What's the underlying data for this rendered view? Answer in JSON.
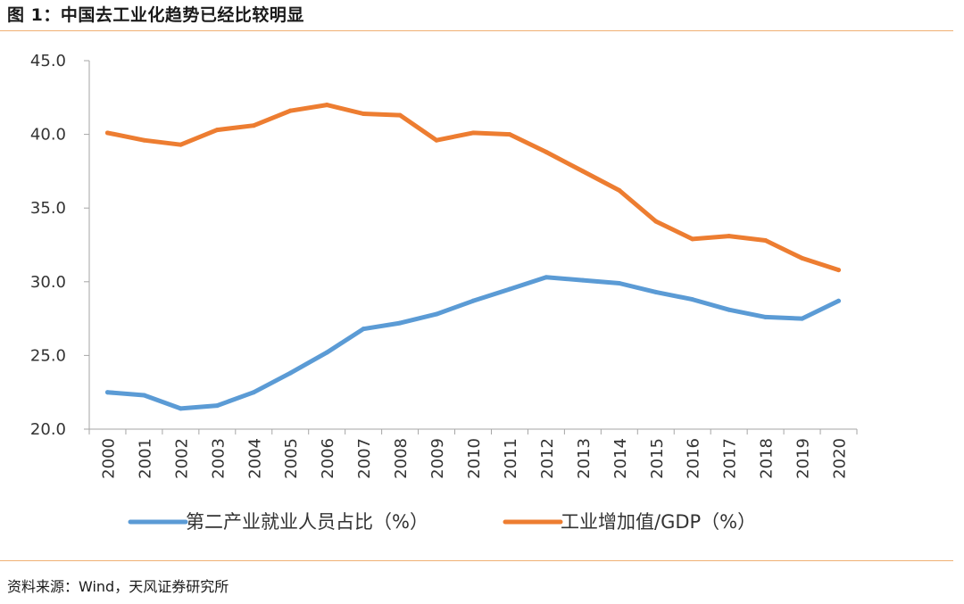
{
  "figure": {
    "title": "图 1：中国去工业化趋势已经比较明显",
    "source": "资料来源：Wind，天风证券研究所"
  },
  "colors": {
    "employment": "#5b9bd5",
    "industry": "#ed7d31",
    "axis": "#a6a6a6",
    "rule": "#f0b074"
  },
  "chart_data": {
    "type": "line",
    "x": [
      "2000",
      "2001",
      "2002",
      "2003",
      "2004",
      "2005",
      "2006",
      "2007",
      "2008",
      "2009",
      "2010",
      "2011",
      "2012",
      "2013",
      "2014",
      "2015",
      "2016",
      "2017",
      "2018",
      "2019",
      "2020"
    ],
    "ylim": [
      20.0,
      45.0
    ],
    "yticks": [
      "20.0",
      "25.0",
      "30.0",
      "35.0",
      "40.0",
      "45.0"
    ],
    "grid": false,
    "legend_position": "bottom",
    "series": [
      {
        "name": "第二产业就业人员占比（%）",
        "color": "#5b9bd5",
        "values": [
          22.5,
          22.3,
          21.4,
          21.6,
          22.5,
          23.8,
          25.2,
          26.8,
          27.2,
          27.8,
          28.7,
          29.5,
          30.3,
          30.1,
          29.9,
          29.3,
          28.8,
          28.1,
          27.6,
          27.5,
          28.7
        ]
      },
      {
        "name": "工业增加值/GDP（%）",
        "color": "#ed7d31",
        "values": [
          40.1,
          39.6,
          39.3,
          40.3,
          40.6,
          41.6,
          42.0,
          41.4,
          41.3,
          39.6,
          40.1,
          40.0,
          38.8,
          37.5,
          36.2,
          34.1,
          32.9,
          33.1,
          32.8,
          31.6,
          30.8
        ]
      }
    ]
  }
}
